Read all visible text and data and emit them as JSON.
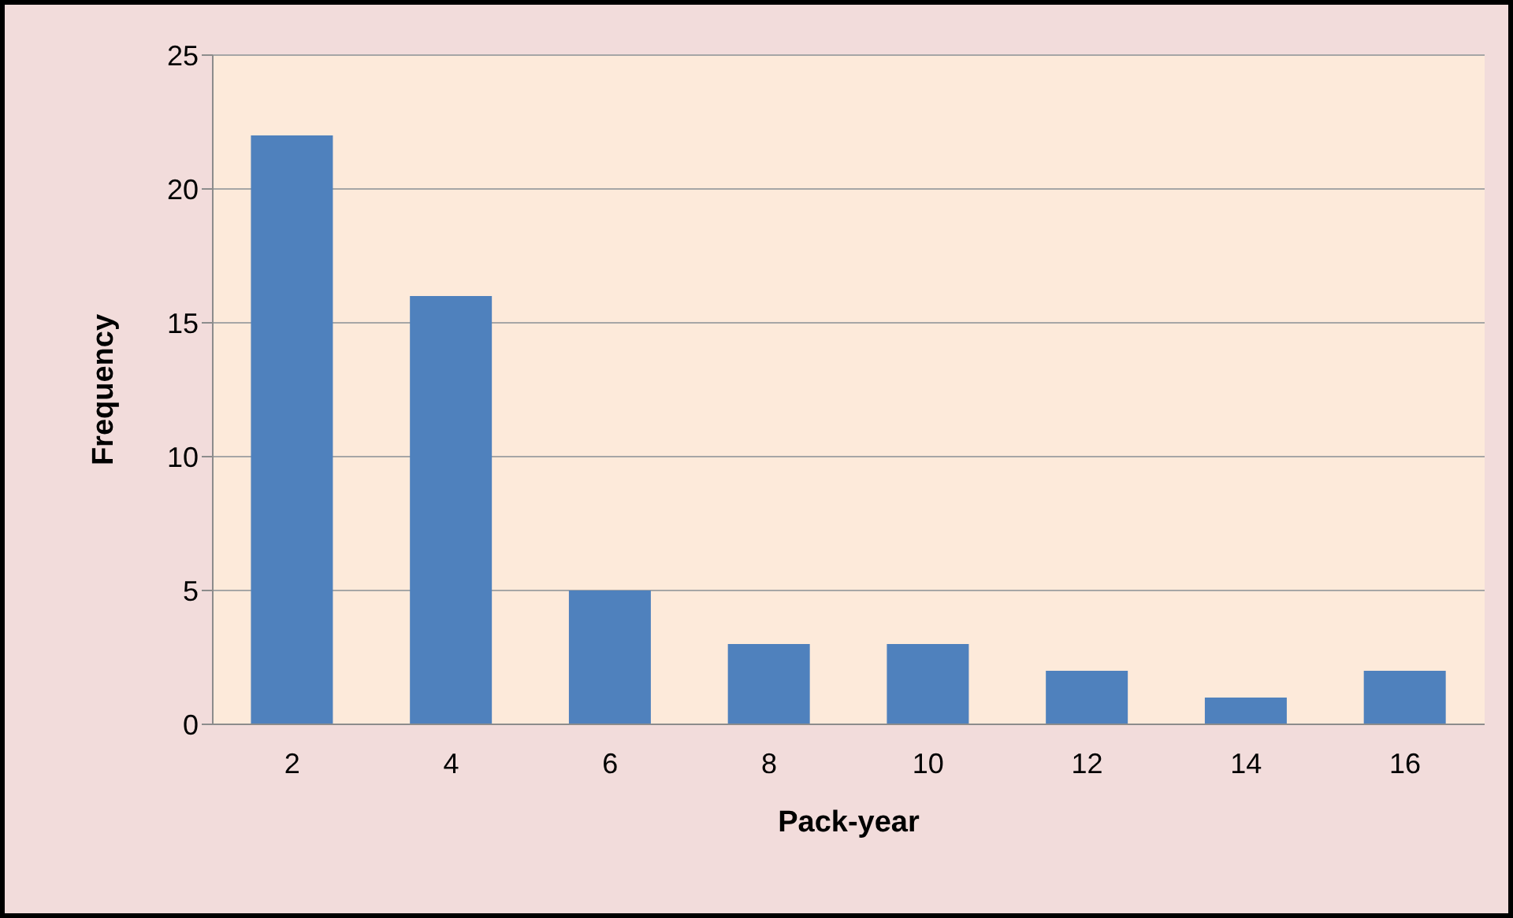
{
  "chart_data": {
    "type": "bar",
    "xlabel": "Pack-year",
    "ylabel": "Frequency",
    "categories": [
      "2",
      "4",
      "6",
      "8",
      "10",
      "12",
      "14",
      "16"
    ],
    "values": [
      22,
      16,
      5,
      3,
      3,
      2,
      1,
      2
    ],
    "color": "#4f81bd",
    "ylim": [
      0,
      25
    ],
    "yticks": [
      0,
      5,
      10,
      15,
      20,
      25
    ],
    "grid": "y"
  }
}
